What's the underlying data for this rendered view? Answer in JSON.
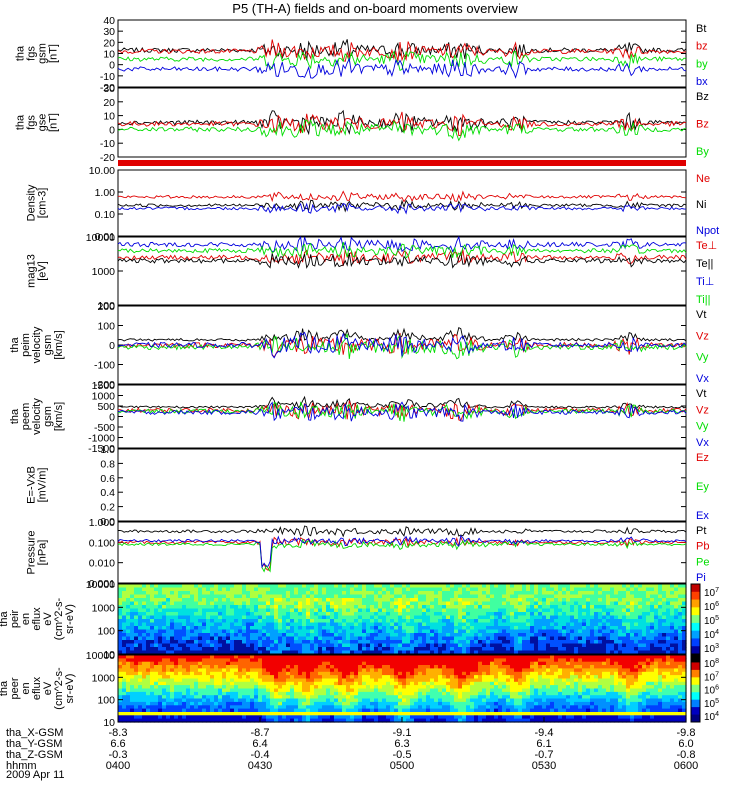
{
  "title": "P5 (TH-A) fields and on-board moments overview",
  "date": "2009 Apr 11",
  "ephemeris": {
    "labels": [
      "tha_X-GSM",
      "tha_Y-GSM",
      "tha_Z-GSM",
      "hhmm"
    ],
    "rows": [
      [
        "-8.3",
        "-8.7",
        "-9.1",
        "-9.4",
        "-9.8"
      ],
      [
        "6.6",
        "6.4",
        "6.3",
        "6.1",
        "6.0"
      ],
      [
        "-0.3",
        "-0.4",
        "-0.5",
        "-0.7",
        "-0.8"
      ],
      [
        "0400",
        "0430",
        "0500",
        "0530",
        "0600"
      ]
    ]
  },
  "colors": {
    "black": "#000000",
    "red": "#e00000",
    "green": "#00dd00",
    "blue": "#0000dd"
  },
  "chart_data": {
    "type": "line",
    "x_range": [
      "0400",
      "0600"
    ],
    "panels": [
      {
        "id": "fgs1",
        "ylabel": [
          "tha",
          "fgs",
          "gsm",
          "[nT]"
        ],
        "ylim": [
          -20,
          40
        ],
        "ticks": [
          "-20",
          "-10",
          "0",
          "10",
          "20",
          "30",
          "40"
        ],
        "series": [
          {
            "name": "Bt",
            "color": "black",
            "base": 13
          },
          {
            "name": "bz",
            "color": "red",
            "base": 12
          },
          {
            "name": "by",
            "color": "green",
            "base": 5
          },
          {
            "name": "bx",
            "color": "blue",
            "base": -4
          }
        ]
      },
      {
        "id": "fgs2",
        "ylabel": [
          "tha",
          "fgs",
          "gse",
          "[nT]"
        ],
        "ylim": [
          -20,
          30
        ],
        "ticks": [
          "-20",
          "-10",
          "0",
          "10",
          "20",
          "30"
        ],
        "series": [
          {
            "name": "Bz",
            "color": "black",
            "base": 5
          },
          {
            "name": "Bz",
            "color": "red",
            "base": 4
          },
          {
            "name": "By",
            "color": "green",
            "base": 0
          }
        ]
      },
      {
        "id": "density",
        "ylabel": [
          "Density",
          "[cm-3]"
        ],
        "ylim": [
          0.01,
          10
        ],
        "log": true,
        "ticks": [
          "0.01",
          "0.10",
          "1.00",
          "10.00"
        ],
        "series": [
          {
            "name": "Ne",
            "color": "red",
            "base": 0.6
          },
          {
            "name": "Ni",
            "color": "black",
            "base": 0.25
          },
          {
            "name": "Npot",
            "color": "blue",
            "base": 0.18
          }
        ]
      },
      {
        "id": "temp",
        "ylabel": [
          "mag13",
          "[eV]"
        ],
        "ylim": [
          100,
          10000
        ],
        "log": true,
        "ticks": [
          "100",
          "1000",
          "10000"
        ],
        "series": [
          {
            "name": "Te⊥",
            "color": "red",
            "base": 2500
          },
          {
            "name": "Te||",
            "color": "black",
            "base": 2000
          },
          {
            "name": "Ti⊥",
            "color": "blue",
            "base": 6000
          },
          {
            "name": "Ti||",
            "color": "green",
            "base": 4000
          }
        ]
      },
      {
        "id": "peim",
        "ylabel": [
          "tha",
          "peim",
          "velocity",
          "gsm",
          "[km/s]"
        ],
        "ylim": [
          -200,
          200
        ],
        "ticks": [
          "-200",
          "-100",
          "0",
          "100",
          "200"
        ],
        "series": [
          {
            "name": "Vt",
            "color": "black",
            "base": 20
          },
          {
            "name": "Vz",
            "color": "red",
            "base": 0
          },
          {
            "name": "Vy",
            "color": "green",
            "base": -10
          },
          {
            "name": "Vx",
            "color": "blue",
            "base": 0
          }
        ]
      },
      {
        "id": "peem",
        "ylabel": [
          "tha",
          "peem",
          "velocity",
          "gsm",
          "[km/s]"
        ],
        "ylim": [
          -1500,
          1500
        ],
        "ticks": [
          "-1500",
          "-1000",
          "-500",
          "0",
          "500",
          "1000",
          "1500"
        ],
        "series": [
          {
            "name": "Vt",
            "color": "black",
            "base": 400
          },
          {
            "name": "Vz",
            "color": "red",
            "base": 300
          },
          {
            "name": "Vy",
            "color": "green",
            "base": 250
          },
          {
            "name": "Vx",
            "color": "blue",
            "base": 200
          }
        ]
      },
      {
        "id": "efield",
        "ylabel": [
          "E=-VxB",
          "[mV/m]"
        ],
        "ylim": [
          0,
          1
        ],
        "ticks": [
          "0.0",
          "0.2",
          "0.4",
          "0.6",
          "0.8",
          "1.0"
        ],
        "series": [
          {
            "name": "Ez",
            "color": "red"
          },
          {
            "name": "Ey",
            "color": "green"
          },
          {
            "name": "Ex",
            "color": "blue"
          }
        ]
      },
      {
        "id": "pressure",
        "ylabel": [
          "Pressure",
          "[nPa]"
        ],
        "ylim": [
          0.001,
          1
        ],
        "log": true,
        "ticks": [
          "0.001",
          "0.010",
          "0.100",
          "1.000"
        ],
        "series": [
          {
            "name": "Pt",
            "color": "black",
            "base": 0.35
          },
          {
            "name": "Pb",
            "color": "red",
            "base": 0.1
          },
          {
            "name": "Pe",
            "color": "green",
            "base": 0.08
          },
          {
            "name": "Pi",
            "color": "blue",
            "base": 0.12
          }
        ]
      },
      {
        "id": "peir",
        "ylabel": [
          "tha",
          "peir",
          "en",
          "eflux",
          "eV",
          "(cm^2-s-",
          "sr-eV)"
        ],
        "ylim": [
          10,
          10000
        ],
        "log": true,
        "type": "heatmap",
        "ticks": [
          "10",
          "100",
          "1000",
          "10000"
        ],
        "colorbar": [
          "10^3",
          "10^4",
          "10^5",
          "10^6",
          "10^7"
        ]
      },
      {
        "id": "peer",
        "ylabel": [
          "tha",
          "peer",
          "en",
          "eflux",
          "eV",
          "(cm^2-s-",
          "sr-eV)"
        ],
        "ylim": [
          10,
          10000
        ],
        "log": true,
        "type": "heatmap",
        "ticks": [
          "10",
          "100",
          "1000",
          "10000"
        ],
        "colorbar": [
          "10^4",
          "10^5",
          "10^6",
          "10^7",
          "10^8"
        ]
      }
    ]
  }
}
